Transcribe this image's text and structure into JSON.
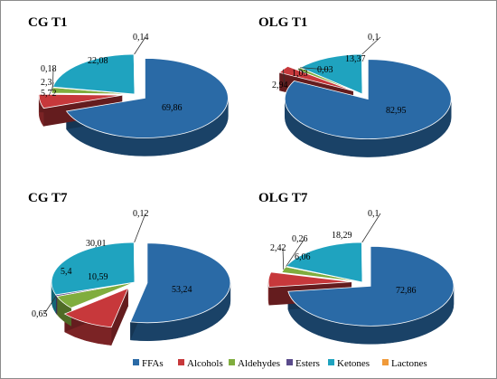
{
  "colors": {
    "FFAs": "#2a6aa6",
    "Alcohols": "#c7383b",
    "Aldehydes": "#80ad3e",
    "Esters": "#5a4b8c",
    "Ketones": "#1fa3bf",
    "Lactones": "#f09a3a"
  },
  "legend": {
    "items": [
      "FFAs",
      "Alcohols",
      "Aldehydes",
      "Esters",
      "Ketones",
      "Lactones"
    ]
  },
  "chart_data": [
    {
      "type": "pie",
      "title": "CG T1",
      "categories": [
        "FFAs",
        "Alcohols",
        "Aldehydes",
        "Esters",
        "Ketones",
        "Lactones"
      ],
      "values": [
        69.86,
        5.72,
        2.3,
        0.18,
        22.08,
        0.14
      ],
      "labels": [
        "69,86",
        "5,72",
        "2,3",
        "0,18",
        "22,08",
        "0,14"
      ],
      "exploded": [
        "FFAs",
        "Alcohols"
      ]
    },
    {
      "type": "pie",
      "title": "OLG T1",
      "categories": [
        "FFAs",
        "Alcohols",
        "Aldehydes",
        "Esters",
        "Ketones",
        "Lactones"
      ],
      "values": [
        82.95,
        2.94,
        1.03,
        0.03,
        13.37,
        0.1
      ],
      "labels": [
        "82,95",
        "2,94",
        "1,03",
        "0,03",
        "13,37",
        "0,1"
      ],
      "exploded": [
        "FFAs",
        "Alcohols"
      ]
    },
    {
      "type": "pie",
      "title": "CG T7",
      "categories": [
        "FFAs",
        "Alcohols",
        "Aldehydes",
        "Esters",
        "Ketones",
        "Lactones"
      ],
      "values": [
        53.24,
        10.59,
        5.4,
        0.65,
        30.01,
        0.12
      ],
      "labels": [
        "53,24",
        "10,59",
        "5,4",
        "0,65",
        "30,01",
        "0,12"
      ],
      "exploded": [
        "FFAs",
        "Alcohols"
      ]
    },
    {
      "type": "pie",
      "title": "OLG T7",
      "categories": [
        "FFAs",
        "Alcohols",
        "Aldehydes",
        "Esters",
        "Ketones",
        "Lactones"
      ],
      "values": [
        72.86,
        6.06,
        2.42,
        0.26,
        18.29,
        0.1
      ],
      "labels": [
        "72,86",
        "6,06",
        "2,42",
        "0,26",
        "18,29",
        "0,1"
      ],
      "exploded": [
        "FFAs",
        "Alcohols"
      ]
    }
  ]
}
